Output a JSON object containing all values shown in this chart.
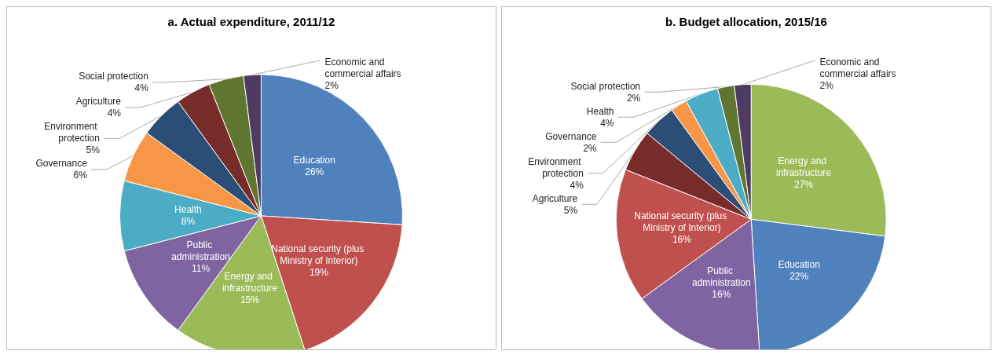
{
  "chart_data": [
    {
      "type": "pie",
      "title": "a. Actual expenditure, 2011/12",
      "categories": [
        "Education",
        "National security (plus Ministry of Interior)",
        "Energy and infrastructure",
        "Public administration",
        "Health",
        "Governance",
        "Environment protection",
        "Agriculture",
        "Social protection",
        "Economic and commercial affairs"
      ],
      "values": [
        26,
        19,
        15,
        11,
        8,
        6,
        5,
        4,
        4,
        2
      ],
      "value_labels": [
        "26%",
        "19%",
        "15%",
        "11%",
        "8%",
        "6%",
        "5%",
        "4%",
        "4%",
        "2%"
      ],
      "colors": [
        "#4f81bd",
        "#c0504d",
        "#9bbb59",
        "#8064a2",
        "#4bacc6",
        "#f79646",
        "#2c4d75",
        "#772c2a",
        "#5f7530",
        "#4d3b62"
      ],
      "legend": false
    },
    {
      "type": "pie",
      "title": "b. Budget allocation, 2015/16",
      "categories": [
        "Energy and infrastructure",
        "Education",
        "Public administration",
        "National security (plus Ministry of Interior)",
        "Agriculture",
        "Environment protection",
        "Governance",
        "Health",
        "Social protection",
        "Economic and commercial affairs"
      ],
      "values": [
        27,
        22,
        16,
        16,
        5,
        4,
        2,
        4,
        2,
        2
      ],
      "value_labels": [
        "27%",
        "22%",
        "16%",
        "16%",
        "5%",
        "4%",
        "2%",
        "4%",
        "2%",
        "2%"
      ],
      "colors": [
        "#9bbb59",
        "#4f81bd",
        "#8064a2",
        "#c0504d",
        "#772c2a",
        "#2c4d75",
        "#f79646",
        "#4bacc6",
        "#5f7530",
        "#4d3b62"
      ],
      "legend": false
    }
  ]
}
